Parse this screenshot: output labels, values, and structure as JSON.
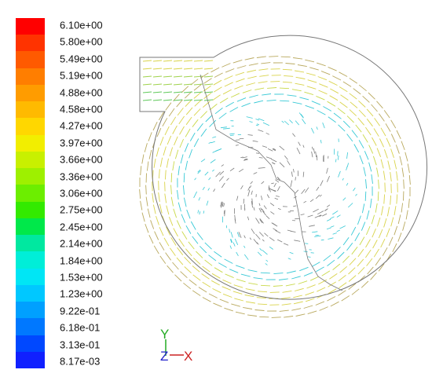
{
  "colormap": {
    "labels": [
      "6.10e+00",
      "5.80e+00",
      "5.49e+00",
      "5.19e+00",
      "4.88e+00",
      "4.58e+00",
      "4.27e+00",
      "3.97e+00",
      "3.66e+00",
      "3.36e+00",
      "3.06e+00",
      "2.75e+00",
      "2.45e+00",
      "2.14e+00",
      "1.84e+00",
      "1.53e+00",
      "1.23e+00",
      "9.22e-01",
      "6.18e-01",
      "3.13e-01",
      "8.17e-03"
    ],
    "colors": [
      "#ff0000",
      "#ff3300",
      "#ff5a00",
      "#ff7e00",
      "#ff9c00",
      "#ffba00",
      "#ffd700",
      "#f2ee00",
      "#c8f000",
      "#9ef000",
      "#6cee00",
      "#33ea00",
      "#00e84a",
      "#00e8a0",
      "#00eed8",
      "#00e6f5",
      "#00c8ff",
      "#00a0ff",
      "#0078ff",
      "#0048ff",
      "#1020ff"
    ]
  },
  "triad": {
    "y": "Y",
    "z": "Z",
    "x": "X"
  },
  "vector_field": {
    "type": "velocity vectors (volute swirl)",
    "outer_ring_color": "#b9a95e",
    "mid_ring_color": "#d9d34a",
    "inner_color": "#38c9d6",
    "core_color": "#7d7d7d",
    "outline_color": "#777777"
  }
}
